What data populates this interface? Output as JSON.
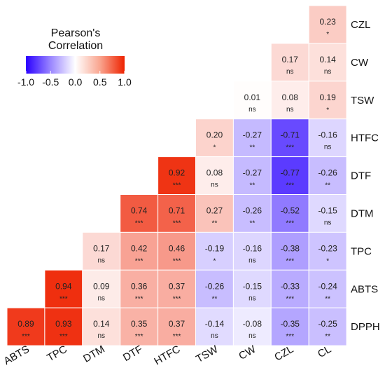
{
  "chart_data": {
    "type": "heatmap",
    "legend": {
      "title_line1": "Pearson's",
      "title_line2": "Correlation",
      "ticks": [
        "-1.0",
        "-0.5",
        "0.0",
        "0.5",
        "1.0"
      ],
      "range": [
        -1,
        1
      ],
      "placement": "top-left"
    },
    "colors": {
      "negative": "#2a00ff",
      "zero": "#ffffff",
      "positive": "#ee2200"
    },
    "x_labels": [
      "ABTS",
      "TPC",
      "DTM",
      "DTF",
      "HTFC",
      "TSW",
      "CW",
      "CZL",
      "CL"
    ],
    "y_labels": [
      "CZL",
      "CW",
      "TSW",
      "HTFC",
      "DTF",
      "DTM",
      "TPC",
      "ABTS",
      "DPPH"
    ],
    "cells": [
      {
        "row": "CZL",
        "col": "CL",
        "value": 0.23,
        "label": "0.23",
        "sig": "*"
      },
      {
        "row": "CW",
        "col": "CZL",
        "value": 0.17,
        "label": "0.17",
        "sig": "ns"
      },
      {
        "row": "CW",
        "col": "CL",
        "value": 0.14,
        "label": "0.14",
        "sig": "ns"
      },
      {
        "row": "TSW",
        "col": "CW",
        "value": 0.01,
        "label": "0.01",
        "sig": "ns"
      },
      {
        "row": "TSW",
        "col": "CZL",
        "value": 0.08,
        "label": "0.08",
        "sig": "ns"
      },
      {
        "row": "TSW",
        "col": "CL",
        "value": 0.19,
        "label": "0.19",
        "sig": "*"
      },
      {
        "row": "HTFC",
        "col": "TSW",
        "value": 0.2,
        "label": "0.20",
        "sig": "*"
      },
      {
        "row": "HTFC",
        "col": "CW",
        "value": -0.27,
        "label": "-0.27",
        "sig": "**"
      },
      {
        "row": "HTFC",
        "col": "CZL",
        "value": -0.71,
        "label": "-0.71",
        "sig": "***"
      },
      {
        "row": "HTFC",
        "col": "CL",
        "value": -0.16,
        "label": "-0.16",
        "sig": "ns"
      },
      {
        "row": "DTF",
        "col": "HTFC",
        "value": 0.92,
        "label": "0.92",
        "sig": "***"
      },
      {
        "row": "DTF",
        "col": "TSW",
        "value": 0.08,
        "label": "0.08",
        "sig": "ns"
      },
      {
        "row": "DTF",
        "col": "CW",
        "value": -0.27,
        "label": "-0.27",
        "sig": "**"
      },
      {
        "row": "DTF",
        "col": "CZL",
        "value": -0.77,
        "label": "-0.77",
        "sig": "***"
      },
      {
        "row": "DTF",
        "col": "CL",
        "value": -0.26,
        "label": "-0.26",
        "sig": "**"
      },
      {
        "row": "DTM",
        "col": "DTF",
        "value": 0.74,
        "label": "0.74",
        "sig": "***"
      },
      {
        "row": "DTM",
        "col": "HTFC",
        "value": 0.71,
        "label": "0.71",
        "sig": "***"
      },
      {
        "row": "DTM",
        "col": "TSW",
        "value": 0.27,
        "label": "0.27",
        "sig": "**"
      },
      {
        "row": "DTM",
        "col": "CW",
        "value": -0.26,
        "label": "-0.26",
        "sig": "**"
      },
      {
        "row": "DTM",
        "col": "CZL",
        "value": -0.52,
        "label": "-0.52",
        "sig": "***"
      },
      {
        "row": "DTM",
        "col": "CL",
        "value": -0.15,
        "label": "-0.15",
        "sig": "ns"
      },
      {
        "row": "TPC",
        "col": "DTM",
        "value": 0.17,
        "label": "0.17",
        "sig": "ns"
      },
      {
        "row": "TPC",
        "col": "DTF",
        "value": 0.42,
        "label": "0.42",
        "sig": "***"
      },
      {
        "row": "TPC",
        "col": "HTFC",
        "value": 0.46,
        "label": "0.46",
        "sig": "***"
      },
      {
        "row": "TPC",
        "col": "TSW",
        "value": -0.19,
        "label": "-0.19",
        "sig": "*"
      },
      {
        "row": "TPC",
        "col": "CW",
        "value": -0.16,
        "label": "-0.16",
        "sig": "ns"
      },
      {
        "row": "TPC",
        "col": "CZL",
        "value": -0.38,
        "label": "-0.38",
        "sig": "***"
      },
      {
        "row": "TPC",
        "col": "CL",
        "value": -0.23,
        "label": "-0.23",
        "sig": "*"
      },
      {
        "row": "ABTS",
        "col": "TPC",
        "value": 0.94,
        "label": "0.94",
        "sig": "***"
      },
      {
        "row": "ABTS",
        "col": "DTM",
        "value": 0.09,
        "label": "0.09",
        "sig": "ns"
      },
      {
        "row": "ABTS",
        "col": "DTF",
        "value": 0.36,
        "label": "0.36",
        "sig": "***"
      },
      {
        "row": "ABTS",
        "col": "HTFC",
        "value": 0.37,
        "label": "0.37",
        "sig": "***"
      },
      {
        "row": "ABTS",
        "col": "TSW",
        "value": -0.26,
        "label": "-0.26",
        "sig": "**"
      },
      {
        "row": "ABTS",
        "col": "CW",
        "value": -0.15,
        "label": "-0.15",
        "sig": "ns"
      },
      {
        "row": "ABTS",
        "col": "CZL",
        "value": -0.33,
        "label": "-0.33",
        "sig": "***"
      },
      {
        "row": "ABTS",
        "col": "CL",
        "value": -0.24,
        "label": "-0.24",
        "sig": "**"
      },
      {
        "row": "DPPH",
        "col": "ABTS",
        "value": 0.89,
        "label": "0.89",
        "sig": "***"
      },
      {
        "row": "DPPH",
        "col": "TPC",
        "value": 0.93,
        "label": "0.93",
        "sig": "***"
      },
      {
        "row": "DPPH",
        "col": "DTM",
        "value": 0.14,
        "label": "0.14",
        "sig": "ns"
      },
      {
        "row": "DPPH",
        "col": "DTF",
        "value": 0.35,
        "label": "0.35",
        "sig": "***"
      },
      {
        "row": "DPPH",
        "col": "HTFC",
        "value": 0.37,
        "label": "0.37",
        "sig": "***"
      },
      {
        "row": "DPPH",
        "col": "TSW",
        "value": -0.14,
        "label": "-0.14",
        "sig": "ns"
      },
      {
        "row": "DPPH",
        "col": "CW",
        "value": -0.08,
        "label": "-0.08",
        "sig": "ns"
      },
      {
        "row": "DPPH",
        "col": "CZL",
        "value": -0.35,
        "label": "-0.35",
        "sig": "***"
      },
      {
        "row": "DPPH",
        "col": "CL",
        "value": -0.25,
        "label": "-0.25",
        "sig": "**"
      }
    ]
  }
}
